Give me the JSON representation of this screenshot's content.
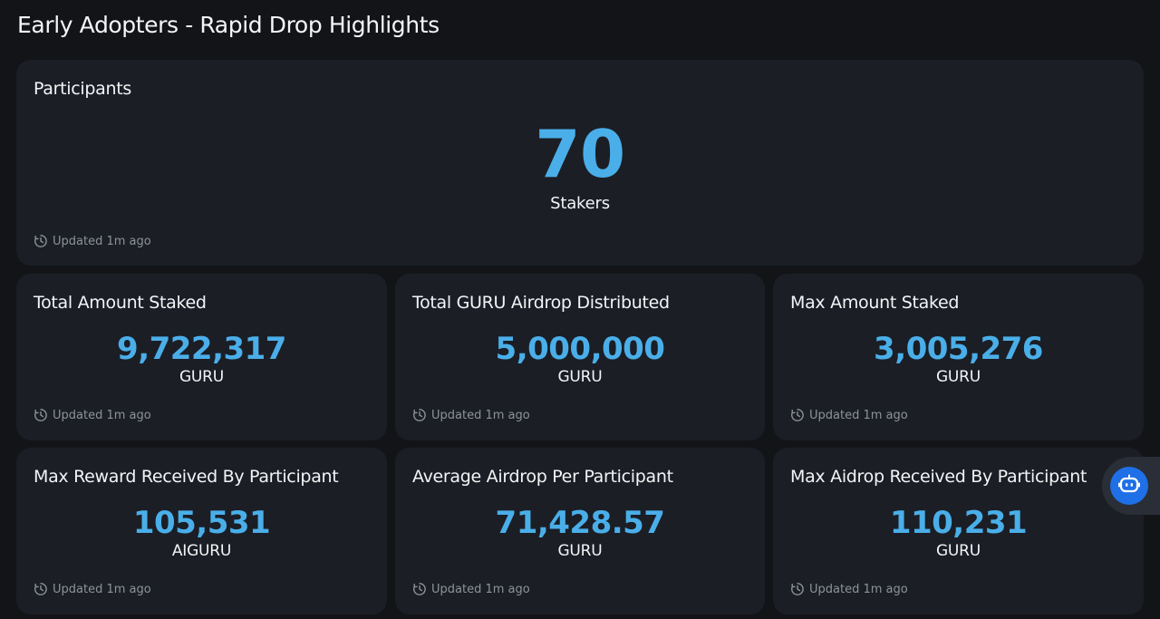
{
  "page": {
    "title": "Early Adopters - Rapid Drop Highlights"
  },
  "colors": {
    "background": "#121418",
    "card": "#1b1e25",
    "accent_value": "#4aaee8",
    "muted_text": "#8d929b",
    "bot_button": "#1f6fe6"
  },
  "cards": {
    "participants": {
      "title": "Participants",
      "value": "70",
      "unit": "Stakers",
      "updated": "Updated 1m ago"
    },
    "total_staked": {
      "title": "Total Amount Staked",
      "value": "9,722,317",
      "unit": "GURU",
      "updated": "Updated 1m ago"
    },
    "guru_airdrop": {
      "title": "Total GURU Airdrop Distributed",
      "value": "5,000,000",
      "unit": "GURU",
      "updated": "Updated 1m ago"
    },
    "max_staked": {
      "title": "Max Amount Staked",
      "value": "3,005,276",
      "unit": "GURU",
      "updated": "Updated 1m ago"
    },
    "max_reward": {
      "title": "Max Reward Received By Participant",
      "value": "105,531",
      "unit": "AIGURU",
      "updated": "Updated 1m ago"
    },
    "avg_airdrop": {
      "title": "Average Airdrop Per Participant",
      "value": "71,428.57",
      "unit": "GURU",
      "updated": "Updated 1m ago"
    },
    "max_airdrop": {
      "title": "Max Aidrop Received By Participant",
      "value": "110,231",
      "unit": "GURU",
      "updated": "Updated 1m ago"
    }
  },
  "icons": {
    "updated": "clock-history-icon",
    "assistant": "robot-icon"
  }
}
